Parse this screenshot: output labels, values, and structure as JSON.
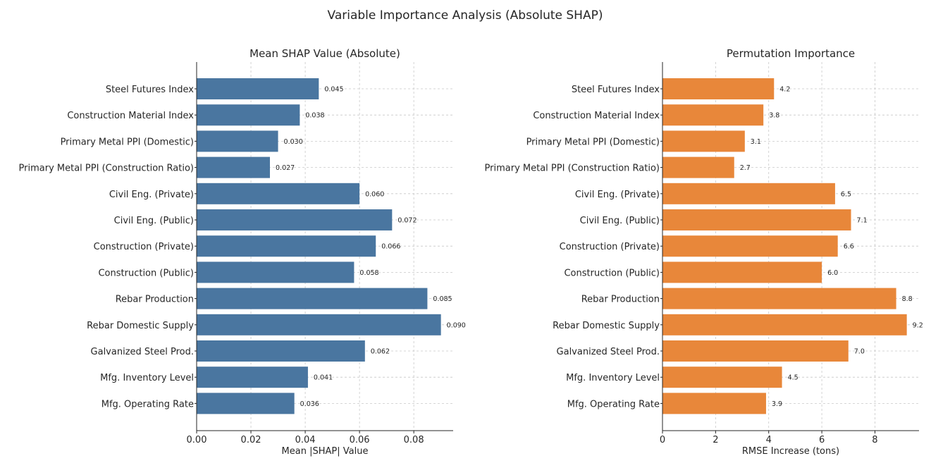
{
  "suptitle": "Variable Importance Analysis (Absolute SHAP)",
  "chart_data": [
    {
      "type": "bar",
      "orientation": "horizontal",
      "title": "Mean SHAP Value (Absolute)",
      "xlabel": "Mean |SHAP| Value",
      "ylabel": "",
      "categories": [
        "Steel Futures Index",
        "Construction Material Index",
        "Primary Metal PPI (Domestic)",
        "Primary Metal PPI (Construction Ratio)",
        "Civil Eng. (Private)",
        "Civil Eng. (Public)",
        "Construction (Private)",
        "Construction (Public)",
        "Rebar Production",
        "Rebar Domestic Supply",
        "Galvanized Steel Prod.",
        "Mfg. Inventory Level",
        "Mfg. Operating Rate"
      ],
      "values": [
        0.045,
        0.038,
        0.03,
        0.027,
        0.06,
        0.072,
        0.066,
        0.058,
        0.085,
        0.09,
        0.062,
        0.041,
        0.036
      ],
      "data_labels": [
        "0.045",
        "0.038",
        "0.030",
        "0.027",
        "0.060",
        "0.072",
        "0.066",
        "0.058",
        "0.085",
        "0.090",
        "0.062",
        "0.041",
        "0.036"
      ],
      "xlim": [
        0,
        0.0945
      ],
      "xticks": [
        0,
        0.02,
        0.04,
        0.06,
        0.08
      ],
      "xtick_labels": [
        "0.00",
        "0.02",
        "0.04",
        "0.06",
        "0.08"
      ],
      "grid": true,
      "color": "#4a76a0"
    },
    {
      "type": "bar",
      "orientation": "horizontal",
      "title": "Permutation Importance",
      "xlabel": "RMSE Increase (tons)",
      "ylabel": "",
      "categories": [
        "Steel Futures Index",
        "Construction Material Index",
        "Primary Metal PPI (Domestic)",
        "Primary Metal PPI (Construction Ratio)",
        "Civil Eng. (Private)",
        "Civil Eng. (Public)",
        "Construction (Private)",
        "Construction (Public)",
        "Rebar Production",
        "Rebar Domestic Supply",
        "Galvanized Steel Prod.",
        "Mfg. Inventory Level",
        "Mfg. Operating Rate"
      ],
      "values": [
        4.2,
        3.8,
        3.1,
        2.7,
        6.5,
        7.1,
        6.6,
        6.0,
        8.8,
        9.2,
        7.0,
        4.5,
        3.9
      ],
      "data_labels": [
        "4.2",
        "3.8",
        "3.1",
        "2.7",
        "6.5",
        "7.1",
        "6.6",
        "6.0",
        "8.8",
        "9.2",
        "7.0",
        "4.5",
        "3.9"
      ],
      "xlim": [
        0,
        9.66
      ],
      "xticks": [
        0,
        2,
        4,
        6,
        8
      ],
      "xtick_labels": [
        "0",
        "2",
        "4",
        "6",
        "8"
      ],
      "grid": true,
      "color": "#e8873a"
    }
  ]
}
